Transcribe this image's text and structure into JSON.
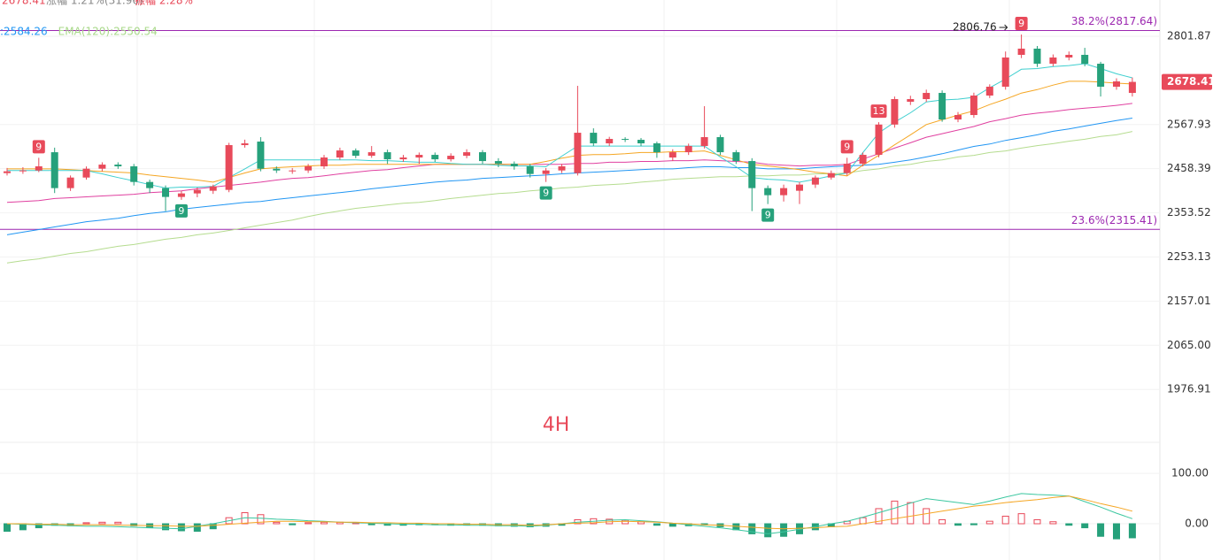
{
  "chart_data": {
    "type": "candlestick",
    "log_scale": true,
    "grid": true,
    "up_color": "#e84a5a",
    "down_color": "#26a17b",
    "top_legend": [
      "2678.41",
      "涨幅 1.21%(31.96)",
      "振幅 2.28%"
    ],
    "ma_legend": [
      {
        "text": ":2584.26",
        "color": "#2196f3"
      },
      {
        "text": "EMA(120):2550.54",
        "color": "#a9d98a"
      }
    ],
    "ylim": [
      1943,
      2904
    ],
    "yticks": [
      2801.87,
      2567.93,
      2458.39,
      2353.52,
      2253.13,
      2157.01,
      {
        "value": 2065,
        "label": "2065.00"
      },
      1976.91
    ],
    "open": [
      2447.7,
      2452.0,
      2454.1,
      2498.7,
      2411.7,
      2437.0,
      2458.4,
      2468.3,
      2464.1,
      2426.4,
      2411.7,
      2390.8,
      2399.1,
      2405.4,
      2407.5,
      2516.3,
      2525.1,
      2458.4,
      2452.0,
      2454.1,
      2464.1,
      2485.7,
      2503.1,
      2490.0,
      2498.7,
      2481.3,
      2485.7,
      2492.2,
      2481.3,
      2490.0,
      2498.7,
      2477.0,
      2470.5,
      2464.1,
      2445.6,
      2454.1,
      2447.7,
      2547.2,
      2520.7,
      2531.7,
      2529.5,
      2520.7,
      2485.7,
      2498.7,
      2514.1,
      2536.2,
      2498.7,
      2477.0,
      2411.7,
      2394.9,
      2405.4,
      2420.1,
      2437.0,
      2447.7,
      2470.5,
      2492.2,
      2567.9,
      2626.4,
      2633.3,
      2649.4,
      2580.8,
      2592.2,
      2642.5,
      2665.7,
      2750.9,
      2767.8,
      2726.9,
      2743.7,
      2750.9,
      2726.9,
      2665.7,
      2649.4
    ],
    "high": [
      2460,
      2462,
      2485,
      2510,
      2442,
      2464,
      2474,
      2474,
      2470,
      2432,
      2418,
      2405,
      2413,
      2420,
      2522,
      2530,
      2536.2,
      2464,
      2460,
      2470,
      2492,
      2510,
      2508,
      2514,
      2505,
      2492,
      2498,
      2498,
      2496,
      2506,
      2504,
      2484,
      2476,
      2470,
      2460,
      2470,
      2668.0,
      2558.4,
      2537,
      2536,
      2534,
      2525,
      2506,
      2520,
      2614.9,
      2542,
      2504,
      2484,
      2418,
      2420,
      2426,
      2442,
      2454,
      2485,
      2498,
      2574,
      2640,
      2642,
      2658,
      2656,
      2600,
      2650,
      2672,
      2760,
      2806.76,
      2775,
      2752,
      2760,
      2770,
      2732,
      2688,
      2690
    ],
    "low": [
      2442,
      2446,
      2450,
      2400,
      2405,
      2432,
      2452,
      2458,
      2418,
      2400,
      2357.6,
      2384,
      2390,
      2398,
      2402,
      2510,
      2452,
      2448,
      2446,
      2448,
      2458,
      2480,
      2484,
      2485,
      2470,
      2475,
      2470,
      2475,
      2476,
      2484,
      2470,
      2462,
      2456,
      2437,
      2426.4,
      2447.7,
      2442,
      2514,
      2514,
      2524,
      2514,
      2485,
      2477,
      2492,
      2508,
      2492,
      2470,
      2357.6,
      2374,
      2380,
      2374.1,
      2412,
      2432,
      2442,
      2464,
      2486,
      2560,
      2618,
      2626,
      2575,
      2574,
      2585,
      2636,
      2658,
      2742,
      2718,
      2720,
      2736,
      2720,
      2640,
      2658,
      2640
    ],
    "close": [
      2452.0,
      2454.1,
      2464.1,
      2411.7,
      2437.0,
      2458.4,
      2468.3,
      2464.1,
      2426.4,
      2411.7,
      2390.8,
      2399.1,
      2407.5,
      2415.9,
      2516.3,
      2520.7,
      2458.4,
      2454.1,
      2454.1,
      2464.1,
      2485.7,
      2503.1,
      2490.0,
      2498.7,
      2481.3,
      2485.7,
      2492.2,
      2481.3,
      2490.0,
      2498.7,
      2477.0,
      2470.5,
      2464.1,
      2445.6,
      2454.1,
      2464.1,
      2547.2,
      2520.7,
      2531.7,
      2529.5,
      2520.7,
      2498.7,
      2498.7,
      2514.1,
      2536.2,
      2498.7,
      2477.0,
      2411.7,
      2394.9,
      2411.7,
      2420.1,
      2437.0,
      2447.7,
      2470.5,
      2492.2,
      2567.9,
      2633.3,
      2633.3,
      2649.4,
      2580.8,
      2592.2,
      2642.5,
      2665.7,
      2743.7,
      2767.8,
      2726.9,
      2743.7,
      2750.9,
      2726.9,
      2665.7,
      2679.7,
      2678.41
    ],
    "moving_averages": [
      {
        "color": "#b5dc8f",
        "values": [
          2240,
          2245,
          2249,
          2255,
          2261,
          2265,
          2271,
          2277,
          2281,
          2287,
          2293,
          2297,
          2303,
          2307,
          2313,
          2319,
          2325,
          2331,
          2337,
          2345,
          2352,
          2358,
          2364,
          2368,
          2372,
          2376,
          2378,
          2382,
          2387,
          2391,
          2395,
          2399,
          2401,
          2405,
          2408,
          2412,
          2414,
          2418,
          2420,
          2422,
          2426,
          2429,
          2433,
          2435,
          2437,
          2439,
          2439,
          2441,
          2441,
          2443,
          2443,
          2446,
          2446,
          2448,
          2454,
          2458,
          2465,
          2469,
          2476,
          2480,
          2487,
          2491,
          2498,
          2502,
          2509,
          2515,
          2520,
          2526,
          2531,
          2538,
          2542,
          2550.54
        ]
      },
      {
        "color": "#2196f3",
        "values": [
          2303,
          2309,
          2315,
          2321,
          2327,
          2333,
          2337,
          2341,
          2347,
          2352,
          2356,
          2362,
          2366,
          2370,
          2374,
          2378,
          2380,
          2385,
          2389,
          2393,
          2397,
          2401,
          2405,
          2410,
          2414,
          2418,
          2422,
          2426,
          2429,
          2431,
          2435,
          2437,
          2439,
          2441,
          2443,
          2446,
          2448,
          2450,
          2452,
          2454,
          2456,
          2458,
          2458,
          2461,
          2463,
          2463,
          2461,
          2461,
          2458,
          2458,
          2458,
          2461,
          2463,
          2465,
          2467,
          2469,
          2474,
          2480,
          2487,
          2495,
          2504,
          2513,
          2519,
          2528,
          2535,
          2542,
          2551,
          2557,
          2564,
          2571,
          2578,
          2584.26
        ]
      },
      {
        "color": "#e040a0",
        "values": [
          2378,
          2380,
          2382,
          2387,
          2389,
          2391,
          2393,
          2395,
          2397,
          2401,
          2403,
          2405,
          2410,
          2414,
          2418,
          2422,
          2426,
          2431,
          2435,
          2437,
          2441,
          2446,
          2450,
          2454,
          2456,
          2461,
          2465,
          2469,
          2469,
          2469,
          2469,
          2469,
          2469,
          2469,
          2469,
          2469,
          2471,
          2471,
          2474,
          2474,
          2476,
          2476,
          2478,
          2478,
          2480,
          2478,
          2476,
          2474,
          2469,
          2467,
          2465,
          2467,
          2467,
          2469,
          2482,
          2495,
          2509,
          2522,
          2536,
          2545,
          2554,
          2563,
          2575,
          2583,
          2592,
          2597,
          2601,
          2606,
          2610,
          2613,
          2617,
          2622
        ]
      },
      {
        "color": "#f5a623",
        "values": [
          2458,
          2458,
          2458,
          2458,
          2456,
          2454,
          2452,
          2450,
          2448,
          2443,
          2439,
          2435,
          2431,
          2426,
          2437,
          2448,
          2458,
          2461,
          2463,
          2465,
          2467,
          2467,
          2469,
          2469,
          2469,
          2469,
          2469,
          2469,
          2469,
          2469,
          2469,
          2469,
          2469,
          2469,
          2476,
          2484,
          2491,
          2493,
          2493,
          2495,
          2498,
          2498,
          2500,
          2500,
          2502,
          2491,
          2480,
          2469,
          2465,
          2461,
          2456,
          2450,
          2446,
          2441,
          2467,
          2491,
          2517,
          2542,
          2568,
          2580,
          2592,
          2603,
          2619,
          2633,
          2649,
          2658,
          2670,
          2680,
          2680,
          2678,
          2675,
          2673
        ]
      },
      {
        "color": "#3fcfcf",
        "values": [
          2454,
          2454,
          2454,
          2454,
          2454,
          2454,
          2446,
          2437,
          2429,
          2420,
          2412,
          2414,
          2414,
          2416,
          2437,
          2458,
          2480,
          2480,
          2480,
          2480,
          2480,
          2480,
          2480,
          2478,
          2478,
          2476,
          2474,
          2474,
          2471,
          2469,
          2469,
          2467,
          2465,
          2465,
          2463,
          2489,
          2514,
          2514,
          2514,
          2514,
          2514,
          2514,
          2514,
          2514,
          2514,
          2487,
          2463,
          2437,
          2433,
          2431,
          2426,
          2433,
          2441,
          2448,
          2498,
          2547,
          2574,
          2598,
          2626,
          2631,
          2633,
          2638,
          2663,
          2686,
          2712,
          2714,
          2719,
          2722,
          2727,
          2714,
          2700,
          2689
        ]
      }
    ],
    "fib_levels": [
      {
        "label": "38.2%(2817.64)",
        "value": 2817.64
      },
      {
        "label": "23.6%(2315.41)",
        "value": 2315.41
      }
    ],
    "fib_color": "#9c27b0",
    "high_marker": 2806.76,
    "td_labels": [
      {
        "index": 2,
        "text": "9",
        "side": "above"
      },
      {
        "index": 11,
        "text": "9",
        "side": "below"
      },
      {
        "index": 34,
        "text": "9",
        "side": "below"
      },
      {
        "index": 48,
        "text": "9",
        "side": "below"
      },
      {
        "index": 53,
        "text": "9",
        "side": "above"
      },
      {
        "index": 55,
        "text": "13",
        "side": "above"
      },
      {
        "index": 64,
        "text": "9",
        "side": "above"
      }
    ],
    "period_label": "4H",
    "macd": {
      "ylim": [
        -58,
        153
      ],
      "yticks": [
        {
          "value": 100,
          "label": "100.00"
        },
        {
          "value": 0,
          "label": "0.00"
        }
      ],
      "dif_color": "#3cc7a0",
      "dea_color": "#f5a623",
      "histogram": [
        -15,
        -12,
        -8,
        -3,
        -4,
        2,
        3,
        3,
        -4,
        -8,
        -12,
        -14,
        -15,
        -10,
        12,
        22,
        18,
        3,
        -2,
        2,
        3,
        3,
        2,
        -2,
        -3,
        -3,
        -2,
        -2,
        -3,
        -2,
        -3,
        -4,
        -5,
        -6,
        -5,
        -3,
        8,
        10,
        9,
        7,
        4,
        -3,
        -5,
        -4,
        -2,
        -6,
        -12,
        -20,
        -26,
        -25,
        -20,
        -12,
        -6,
        5,
        12,
        30,
        45,
        42,
        30,
        8,
        -3,
        -2,
        5,
        15,
        20,
        8,
        4,
        -3,
        -8,
        -25,
        -30,
        -28
      ],
      "dif": [
        0,
        -1,
        -2,
        -3,
        -4,
        -5,
        -5,
        -6,
        -7,
        -8,
        -9,
        -10,
        -5,
        0,
        6,
        12,
        11,
        9,
        8,
        6,
        5,
        3,
        2,
        1,
        0,
        -1,
        -1,
        -2,
        -2,
        -3,
        -3,
        -4,
        -4,
        -5,
        -3,
        0,
        3,
        5,
        7,
        8,
        6,
        4,
        1,
        -2,
        -5,
        -8,
        -12,
        -16,
        -20,
        -16,
        -11,
        -6,
        0,
        5,
        13,
        22,
        31,
        41,
        50,
        46,
        42,
        38,
        45,
        53,
        60,
        58,
        57,
        55,
        44,
        33,
        21,
        10
      ],
      "dea": [
        0,
        0,
        -1,
        -1,
        -2,
        -2,
        -2,
        -3,
        -3,
        -4,
        -4,
        -5,
        -5,
        -3,
        -1,
        1,
        3,
        5,
        5,
        4,
        4,
        3,
        3,
        2,
        2,
        1,
        1,
        0,
        0,
        -1,
        -1,
        -2,
        -2,
        -3,
        -2,
        0,
        1,
        2,
        4,
        5,
        4,
        3,
        1,
        0,
        -2,
        -3,
        -5,
        -7,
        -9,
        -10,
        -9,
        -8,
        -6,
        -5,
        0,
        5,
        10,
        15,
        20,
        25,
        30,
        35,
        38,
        42,
        45,
        48,
        52,
        55,
        48,
        40,
        33,
        25
      ]
    }
  }
}
